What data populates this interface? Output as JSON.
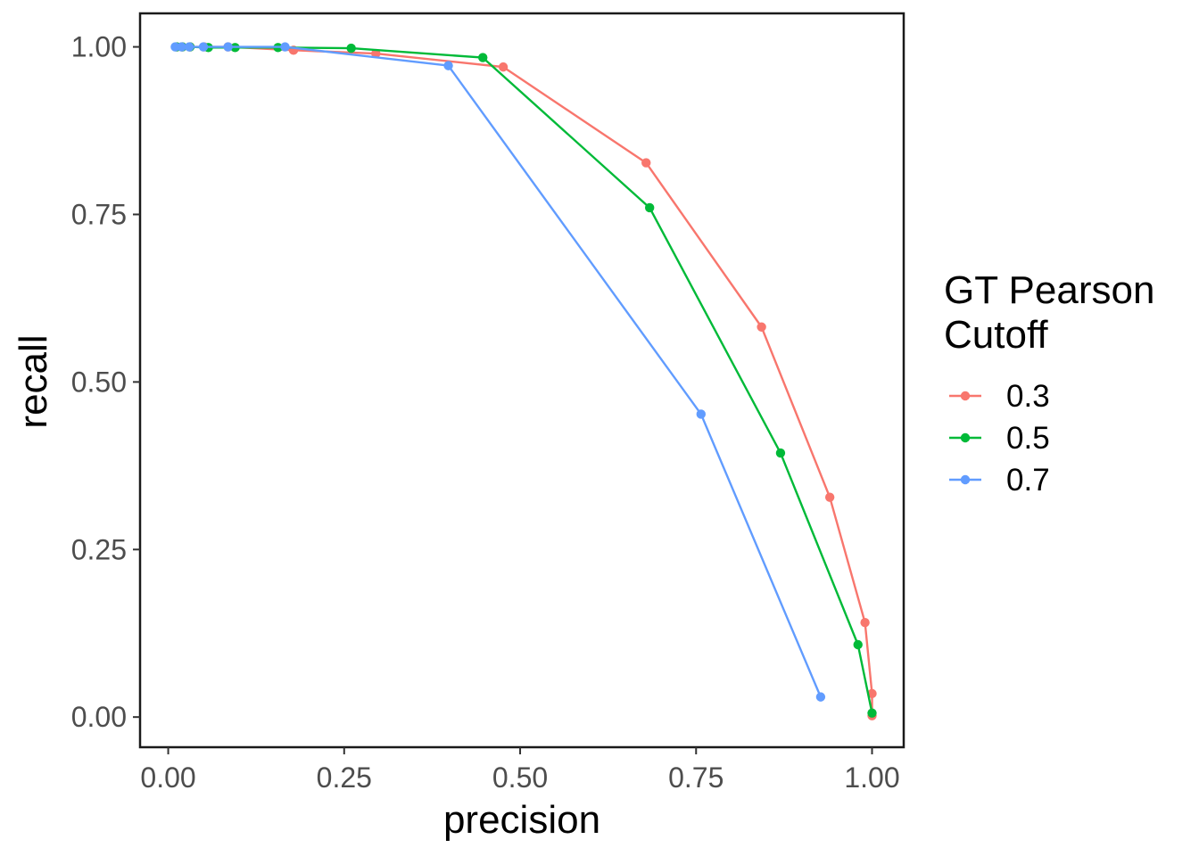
{
  "chart_data": {
    "type": "line",
    "title": "",
    "xlabel": "precision",
    "ylabel": "recall",
    "xlim": [
      -0.04,
      1.045
    ],
    "ylim": [
      -0.045,
      1.05
    ],
    "x_ticks": [
      0,
      0.25,
      0.5,
      0.75,
      1
    ],
    "x_tick_labels": [
      "0.00",
      "0.25",
      "0.50",
      "0.75",
      "1.00"
    ],
    "y_ticks": [
      0,
      0.25,
      0.5,
      0.75,
      1
    ],
    "y_tick_labels": [
      "0.00",
      "0.25",
      "0.50",
      "0.75",
      "1.00"
    ],
    "grid": false,
    "markers": true,
    "legend": {
      "title_lines": [
        "GT Pearson",
        "Cutoff"
      ],
      "position": "right"
    },
    "series": [
      {
        "name": "0.3",
        "color": "#F8766D",
        "points": [
          {
            "x": 0.012,
            "y": 1.0
          },
          {
            "x": 0.02,
            "y": 1.0
          },
          {
            "x": 0.031,
            "y": 1.0
          },
          {
            "x": 0.051,
            "y": 1.0
          },
          {
            "x": 0.085,
            "y": 1.0
          },
          {
            "x": 0.178,
            "y": 0.995
          },
          {
            "x": 0.295,
            "y": 0.99
          },
          {
            "x": 0.476,
            "y": 0.97
          },
          {
            "x": 0.679,
            "y": 0.827
          },
          {
            "x": 0.843,
            "y": 0.582
          },
          {
            "x": 0.94,
            "y": 0.328
          },
          {
            "x": 0.99,
            "y": 0.141
          },
          {
            "x": 1.0,
            "y": 0.035
          },
          {
            "x": 1.0,
            "y": 0.002
          }
        ]
      },
      {
        "name": "0.5",
        "color": "#00BA38",
        "points": [
          {
            "x": 0.012,
            "y": 1.0
          },
          {
            "x": 0.02,
            "y": 1.0
          },
          {
            "x": 0.031,
            "y": 1.0
          },
          {
            "x": 0.057,
            "y": 0.999
          },
          {
            "x": 0.095,
            "y": 0.999
          },
          {
            "x": 0.156,
            "y": 0.999
          },
          {
            "x": 0.26,
            "y": 0.998
          },
          {
            "x": 0.447,
            "y": 0.984
          },
          {
            "x": 0.684,
            "y": 0.76
          },
          {
            "x": 0.87,
            "y": 0.394
          },
          {
            "x": 0.98,
            "y": 0.108
          },
          {
            "x": 1.0,
            "y": 0.006
          }
        ]
      },
      {
        "name": "0.7",
        "color": "#619CFF",
        "points": [
          {
            "x": 0.01,
            "y": 1.0
          },
          {
            "x": 0.019,
            "y": 1.0
          },
          {
            "x": 0.03,
            "y": 1.0
          },
          {
            "x": 0.05,
            "y": 1.0
          },
          {
            "x": 0.085,
            "y": 1.0
          },
          {
            "x": 0.166,
            "y": 1.0
          },
          {
            "x": 0.398,
            "y": 0.972
          },
          {
            "x": 0.757,
            "y": 0.452
          },
          {
            "x": 0.927,
            "y": 0.03
          }
        ]
      }
    ]
  }
}
